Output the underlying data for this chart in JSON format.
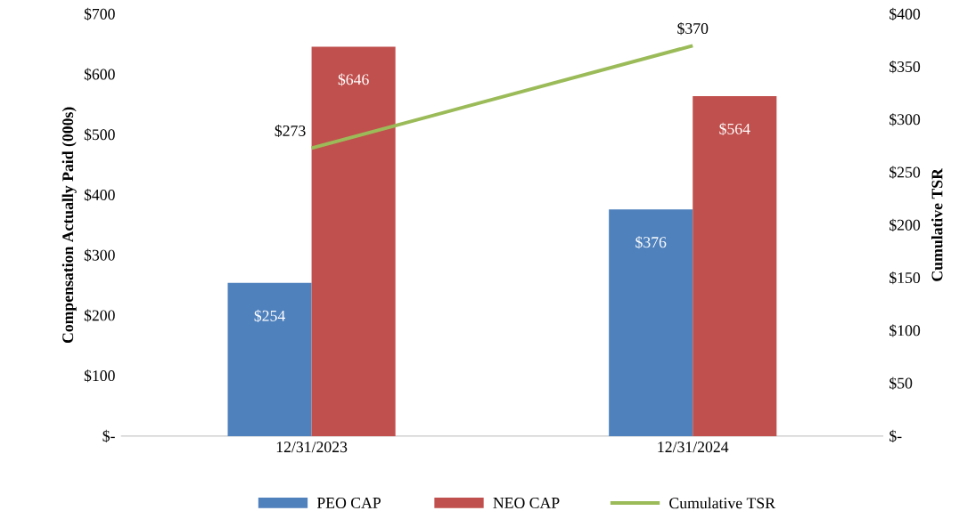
{
  "chart_data": {
    "type": "bar",
    "categories": [
      "12/31/2023",
      "12/31/2024"
    ],
    "ylabel": "Compensation Actually Paid (000s)",
    "y2label": "Cumulative TSR",
    "ylim": [
      0,
      700
    ],
    "yticks": [
      {
        "value": 0,
        "label": "$-"
      },
      {
        "value": 100,
        "label": "$100"
      },
      {
        "value": 200,
        "label": "$200"
      },
      {
        "value": 300,
        "label": "$300"
      },
      {
        "value": 400,
        "label": "$400"
      },
      {
        "value": 500,
        "label": "$500"
      },
      {
        "value": 600,
        "label": "$600"
      },
      {
        "value": 700,
        "label": "$700"
      }
    ],
    "y2lim": [
      0,
      400
    ],
    "y2ticks": [
      {
        "value": 0,
        "label": "$-"
      },
      {
        "value": 50,
        "label": "$50"
      },
      {
        "value": 100,
        "label": "$100"
      },
      {
        "value": 150,
        "label": "$150"
      },
      {
        "value": 200,
        "label": "$200"
      },
      {
        "value": 250,
        "label": "$250"
      },
      {
        "value": 300,
        "label": "$300"
      },
      {
        "value": 350,
        "label": "$350"
      },
      {
        "value": 400,
        "label": "$400"
      }
    ],
    "legend": "bottom",
    "grid": false,
    "series": [
      {
        "name": "PEO CAP",
        "color": "#4f81bd",
        "values": [
          254,
          376
        ],
        "value_labels": [
          "$254",
          "$376"
        ]
      },
      {
        "name": "NEO CAP",
        "color": "#c0504d",
        "values": [
          646,
          564
        ],
        "value_labels": [
          "$646",
          "$564"
        ]
      },
      {
        "name": "Cumulative TSR",
        "type": "line",
        "axis": "y2",
        "color": "#9bbb59",
        "values": [
          273,
          370
        ],
        "value_labels": [
          "$273",
          "$370"
        ]
      }
    ]
  }
}
